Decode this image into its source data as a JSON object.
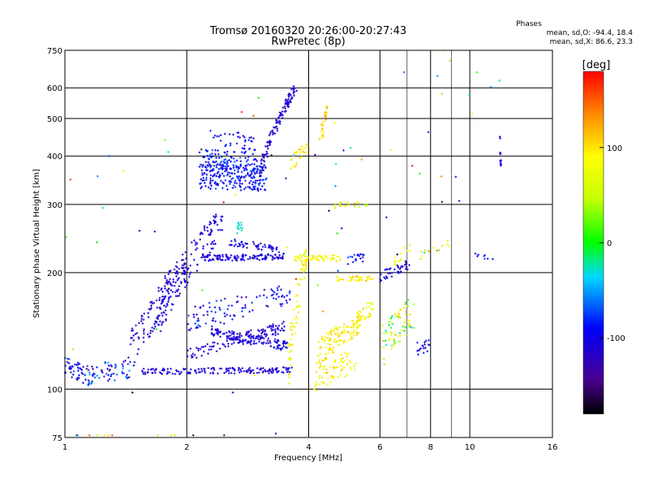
{
  "chart_data": {
    "type": "scatter",
    "title": "Tromsø 20160320 20:26:00-20:27:43",
    "subtitle": "RwPretec (8p)",
    "stats_header": "Phases",
    "stats_o": "mean, sd,O: -94.4, 18.4",
    "stats_x": "mean, sd,X: 86.6, 23.3",
    "xlabel": "Frequency [MHz]",
    "ylabel": "Stationary phase Virtual Height [km]",
    "xscale": "log",
    "yscale": "log",
    "xlim": [
      1,
      16
    ],
    "ylim": [
      75,
      750
    ],
    "xticks": [
      1,
      2,
      4,
      6,
      8,
      10,
      16
    ],
    "xticks_minor": [
      7,
      9
    ],
    "yticks": [
      75,
      100,
      200,
      300,
      400,
      500,
      600,
      750
    ],
    "grid": true,
    "colorbar": {
      "label": "[deg]",
      "range": [
        -180,
        180
      ],
      "ticks": [
        100,
        0,
        -100
      ],
      "colormap": "rainbow"
    },
    "series": [
      {
        "kind": "curve",
        "x0": 1.0,
        "x1": 1.12,
        "h0": 115,
        "h1": 109,
        "dh": 6,
        "n": 40,
        "phase": -100,
        "jitter": 30
      },
      {
        "kind": "curve",
        "x0": 1.12,
        "x1": 1.45,
        "h0": 108,
        "h1": 114,
        "dh": 7,
        "n": 70,
        "phase": -95,
        "jitter": 50
      },
      {
        "kind": "curve",
        "x0": 1.55,
        "x1": 3.65,
        "h0": 111,
        "h1": 112,
        "dh": 2,
        "n": 160,
        "phase": -110,
        "jitter": 10
      },
      {
        "kind": "curve",
        "x0": 1.45,
        "x1": 2.0,
        "h0": 125,
        "h1": 200,
        "dh": 16,
        "n": 130,
        "phase": -108,
        "jitter": 14
      },
      {
        "kind": "curve",
        "x0": 1.7,
        "x1": 2.45,
        "h0": 160,
        "h1": 270,
        "dh": 25,
        "n": 140,
        "phase": -110,
        "jitter": 14
      },
      {
        "kind": "curve",
        "x0": 2.0,
        "x1": 3.5,
        "h0": 122,
        "h1": 145,
        "dh": 5,
        "n": 120,
        "phase": -112,
        "jitter": 14
      },
      {
        "kind": "curve",
        "x0": 2.3,
        "x1": 3.55,
        "h0": 140,
        "h1": 129,
        "dh": 4,
        "n": 130,
        "phase": -108,
        "jitter": 18
      },
      {
        "kind": "curve",
        "x0": 2.0,
        "x1": 3.6,
        "h0": 150,
        "h1": 175,
        "dh": 12,
        "n": 100,
        "phase": -100,
        "jitter": 30
      },
      {
        "kind": "curve",
        "x0": 2.2,
        "x1": 3.5,
        "h0": 218,
        "h1": 220,
        "dh": 4,
        "n": 120,
        "phase": -108,
        "jitter": 20
      },
      {
        "kind": "curve",
        "x0": 2.55,
        "x1": 3.4,
        "h0": 240,
        "h1": 230,
        "dh": 5,
        "n": 50,
        "phase": -106,
        "jitter": 18
      },
      {
        "kind": "curve",
        "x0": 2.15,
        "x1": 3.15,
        "h0": 355,
        "h1": 350,
        "dh": 26,
        "n": 220,
        "phase": -92,
        "jitter": 22
      },
      {
        "kind": "curve",
        "x0": 2.15,
        "x1": 3.0,
        "h0": 395,
        "h1": 385,
        "dh": 22,
        "n": 100,
        "phase": -85,
        "jitter": 20
      },
      {
        "kind": "curve",
        "x0": 2.25,
        "x1": 2.95,
        "h0": 440,
        "h1": 430,
        "dh": 28,
        "n": 40,
        "phase": -96,
        "jitter": 20
      },
      {
        "kind": "curve",
        "x0": 3.05,
        "x1": 3.7,
        "h0": 375,
        "h1": 600,
        "dh": 22,
        "n": 120,
        "phase": -110,
        "jitter": 14
      },
      {
        "kind": "curve",
        "x0": 2.65,
        "x1": 2.75,
        "h0": 260,
        "h1": 268,
        "dh": 10,
        "n": 14,
        "phase": -30,
        "jitter": 12
      },
      {
        "kind": "curve",
        "x0": 3.55,
        "x1": 3.95,
        "h0": 112,
        "h1": 220,
        "dh": 18,
        "n": 70,
        "phase": 80,
        "jitter": 30
      },
      {
        "kind": "curve",
        "x0": 3.6,
        "x1": 4.0,
        "h0": 380,
        "h1": 430,
        "dh": 18,
        "n": 30,
        "phase": 85,
        "jitter": 30
      },
      {
        "kind": "curve",
        "x0": 3.7,
        "x1": 4.8,
        "h0": 218,
        "h1": 218,
        "dh": 4,
        "n": 60,
        "phase": 88,
        "jitter": 20
      },
      {
        "kind": "curve",
        "x0": 4.1,
        "x1": 5.3,
        "h0": 107,
        "h1": 120,
        "dh": 9,
        "n": 70,
        "phase": 92,
        "jitter": 22
      },
      {
        "kind": "curve",
        "x0": 4.2,
        "x1": 5.4,
        "h0": 125,
        "h1": 150,
        "dh": 10,
        "n": 120,
        "phase": 92,
        "jitter": 22
      },
      {
        "kind": "curve",
        "x0": 4.7,
        "x1": 5.8,
        "h0": 193,
        "h1": 193,
        "dh": 3,
        "n": 40,
        "phase": 95,
        "jitter": 30
      },
      {
        "kind": "curve",
        "x0": 4.25,
        "x1": 4.45,
        "h0": 430,
        "h1": 520,
        "dh": 26,
        "n": 30,
        "phase": 110,
        "jitter": 20
      },
      {
        "kind": "curve",
        "x0": 4.6,
        "x1": 5.6,
        "h0": 298,
        "h1": 300,
        "dh": 5,
        "n": 20,
        "phase": 70,
        "jitter": 50
      },
      {
        "kind": "curve",
        "x0": 5.0,
        "x1": 5.5,
        "h0": 215,
        "h1": 220,
        "dh": 6,
        "n": 18,
        "phase": -90,
        "jitter": 25
      },
      {
        "kind": "curve",
        "x0": 5.2,
        "x1": 5.8,
        "h0": 150,
        "h1": 165,
        "dh": 8,
        "n": 30,
        "phase": 85,
        "jitter": 30
      },
      {
        "kind": "curve",
        "x0": 6.0,
        "x1": 7.1,
        "h0": 195,
        "h1": 210,
        "dh": 6,
        "n": 40,
        "phase": -110,
        "jitter": 20
      },
      {
        "kind": "curve",
        "x0": 6.1,
        "x1": 7.3,
        "h0": 130,
        "h1": 160,
        "dh": 16,
        "n": 70,
        "phase": 40,
        "jitter": 90
      },
      {
        "kind": "curve",
        "x0": 6.5,
        "x1": 7.2,
        "h0": 215,
        "h1": 235,
        "dh": 8,
        "n": 14,
        "phase": 80,
        "jitter": 30
      },
      {
        "kind": "curve",
        "x0": 7.4,
        "x1": 8.0,
        "h0": 127,
        "h1": 130,
        "dh": 5,
        "n": 18,
        "phase": -100,
        "jitter": 20
      },
      {
        "kind": "curve",
        "x0": 7.5,
        "x1": 9.0,
        "h0": 220,
        "h1": 240,
        "dh": 6,
        "n": 14,
        "phase": 60,
        "jitter": 80
      },
      {
        "kind": "curve",
        "x0": 10.3,
        "x1": 11.5,
        "h0": 222,
        "h1": 216,
        "dh": 4,
        "n": 8,
        "phase": -90,
        "jitter": 20
      },
      {
        "kind": "curve",
        "x0": 11.85,
        "x1": 11.95,
        "h0": 450,
        "h1": 360,
        "dh": 30,
        "n": 14,
        "phase": -105,
        "jitter": 10
      },
      {
        "kind": "curve",
        "x0": 1.0,
        "x1": 12.0,
        "h0": 90,
        "h1": 600,
        "dh": 260,
        "n": 80,
        "phase": 0,
        "jitter": 180
      }
    ]
  }
}
